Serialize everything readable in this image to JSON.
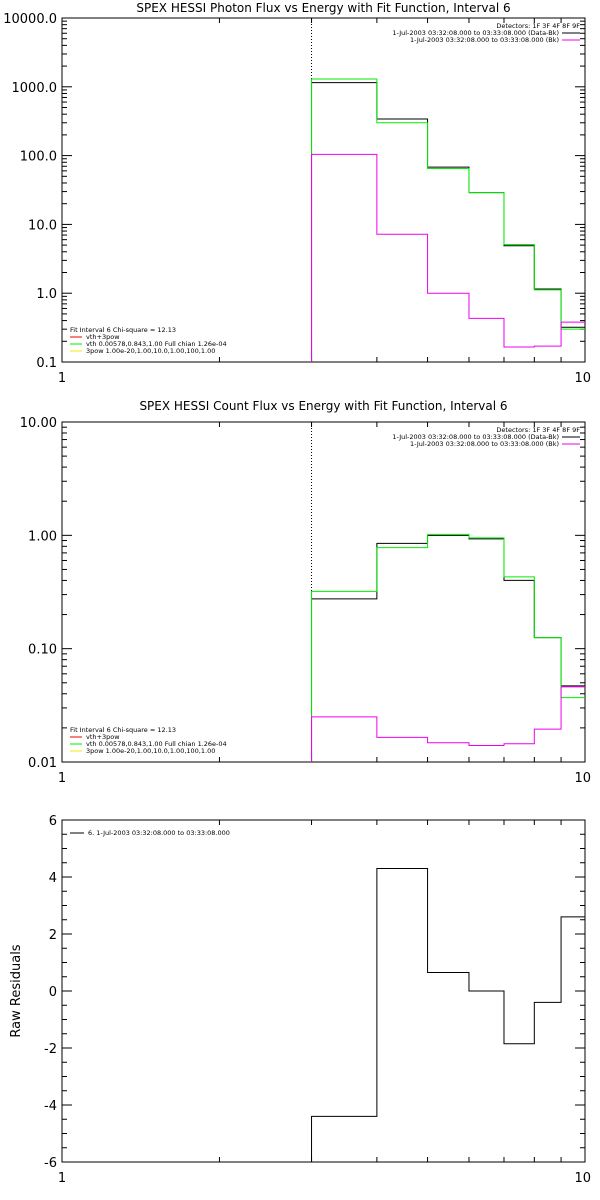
{
  "chart_data": [
    {
      "type": "line",
      "title": "SPEX HESSI Photon Flux vs Energy with Fit Function, Interval 6",
      "xlabel": "",
      "ylabel": "",
      "x_scale": "log",
      "y_scale": "log",
      "xlim": [
        1,
        10
      ],
      "ylim": [
        0.1,
        10000
      ],
      "x_ticks": [
        {
          "v": 1,
          "label": "1"
        },
        {
          "v": 10,
          "label": "10"
        }
      ],
      "y_ticks": [
        {
          "v": 0.1,
          "label": "0.1"
        },
        {
          "v": 1,
          "label": "1.0"
        },
        {
          "v": 10,
          "label": "10.0"
        },
        {
          "v": 100,
          "label": "100.0"
        },
        {
          "v": 1000,
          "label": "1000.0"
        },
        {
          "v": 10000,
          "label": "10000.0"
        }
      ],
      "vline_x": 3.0,
      "bin_edges": [
        3.0,
        4.0,
        5.0,
        6.0,
        7.0,
        8.0,
        9.0,
        10.0
      ],
      "series": [
        {
          "color": "#000000",
          "values": [
            1150,
            340,
            68,
            29,
            4.9,
            1.15,
            0.32
          ]
        },
        {
          "color": "#00ee00",
          "values": [
            1300,
            300,
            65,
            29,
            5.1,
            1.12,
            0.3
          ]
        },
        {
          "color": "#ee00ee",
          "values": [
            104,
            7.2,
            1.0,
            0.43,
            0.165,
            0.17,
            0.38
          ]
        }
      ],
      "legend_top": {
        "title": "Detectors: 1F 3F 4F 8F 9F",
        "entries": [
          {
            "label": "1-Jul-2003 03:32:08.000 to 03:33:08.000 (Data-Bk)",
            "color": "#000000"
          },
          {
            "label": "1-Jul-2003 03:32:08.000 to 03:33:08.000 (Bk)",
            "color": "#ee00ee"
          }
        ]
      },
      "legend_bottom": {
        "title": "Fit Interval 6   Chi-square = 12.13",
        "entries": [
          {
            "label": "vth+3pow",
            "color": "#ee0000"
          },
          {
            "label": "vth 0.00578,0.843,1.00  Full chian 1.26e-04",
            "color": "#00ee00"
          },
          {
            "label": "3pow 1.00e-20,1.00,10.0,1.00,100,1.00",
            "color": "#eeee00"
          }
        ]
      }
    },
    {
      "type": "line",
      "title": "SPEX HESSI Count Flux vs Energy with Fit Function, Interval 6",
      "xlabel": "",
      "ylabel": "",
      "x_scale": "log",
      "y_scale": "log",
      "xlim": [
        1,
        10
      ],
      "ylim": [
        0.01,
        10
      ],
      "x_ticks": [
        {
          "v": 1,
          "label": "1"
        },
        {
          "v": 10,
          "label": "10"
        }
      ],
      "y_ticks": [
        {
          "v": 0.01,
          "label": "0.01"
        },
        {
          "v": 0.1,
          "label": "0.10"
        },
        {
          "v": 1,
          "label": "1.00"
        },
        {
          "v": 10,
          "label": "10.00"
        }
      ],
      "vline_x": 3.0,
      "bin_edges": [
        3.0,
        4.0,
        5.0,
        6.0,
        7.0,
        8.0,
        9.0,
        10.0
      ],
      "series": [
        {
          "color": "#000000",
          "values": [
            0.275,
            0.85,
            1.0,
            0.93,
            0.4,
            0.125,
            0.047
          ]
        },
        {
          "color": "#00ee00",
          "values": [
            0.32,
            0.78,
            1.02,
            0.95,
            0.43,
            0.125,
            0.037
          ]
        },
        {
          "color": "#ee00ee",
          "values": [
            0.025,
            0.0165,
            0.0148,
            0.014,
            0.0145,
            0.0195,
            0.046
          ]
        }
      ],
      "legend_top": {
        "title": "Detectors: 1F 3F 4F 8F 9F",
        "entries": [
          {
            "label": "1-Jul-2003 03:32:08.000 to 03:33:08.000 (Data-Bk)",
            "color": "#000000"
          },
          {
            "label": "1-Jul-2003 03:32:08.000 to 03:33:08.000 (Bk)",
            "color": "#ee00ee"
          }
        ]
      },
      "legend_bottom": {
        "title": "Fit Interval 6   Chi-square = 12.13",
        "entries": [
          {
            "label": "vth+3pow",
            "color": "#ee0000"
          },
          {
            "label": "vth 0.00578,0.843,1.00  Full chian 1.26e-04",
            "color": "#00ee00"
          },
          {
            "label": "3pow 1.00e-20,1.00,10.0,1.00,100,1.00",
            "color": "#eeee00"
          }
        ]
      }
    },
    {
      "type": "line",
      "title": "",
      "xlabel": "",
      "ylabel": "Raw Residuals",
      "x_scale": "log",
      "y_scale": "linear",
      "xlim": [
        1,
        10
      ],
      "ylim": [
        -6,
        6
      ],
      "x_ticks": [
        {
          "v": 1,
          "label": "1"
        },
        {
          "v": 10,
          "label": "10"
        }
      ],
      "y_ticks": [
        {
          "v": -6,
          "label": "-6"
        },
        {
          "v": -4,
          "label": "-4"
        },
        {
          "v": -2,
          "label": "-2"
        },
        {
          "v": 0,
          "label": "0"
        },
        {
          "v": 2,
          "label": "2"
        },
        {
          "v": 4,
          "label": "4"
        },
        {
          "v": 6,
          "label": "6"
        }
      ],
      "bin_edges": [
        3.0,
        4.0,
        5.0,
        6.0,
        7.0,
        8.0,
        9.0,
        10.0
      ],
      "series": [
        {
          "color": "#000000",
          "values": [
            -4.4,
            4.3,
            0.65,
            0.0,
            -1.85,
            -0.4,
            2.6
          ]
        }
      ],
      "legend_top": {
        "title": "",
        "entries": [
          {
            "label": "6.  1-Jul-2003 03:32:08.000 to 03:33:08.000",
            "color": "#000000"
          }
        ]
      }
    }
  ]
}
